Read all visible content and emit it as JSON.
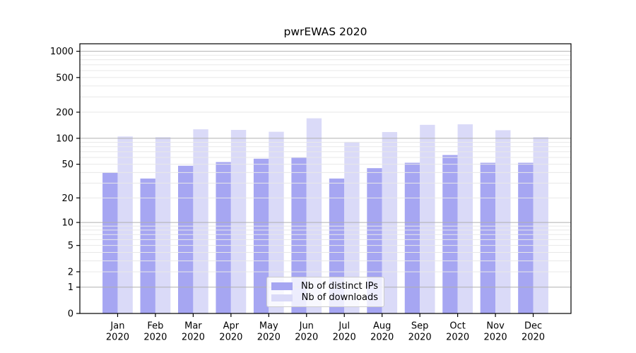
{
  "chart_data": {
    "type": "bar",
    "title": "pwrEWAS 2020",
    "categories": [
      "Jan",
      "Feb",
      "Mar",
      "Apr",
      "May",
      "Jun",
      "Jul",
      "Aug",
      "Sep",
      "Oct",
      "Nov",
      "Dec"
    ],
    "year": "2020",
    "series": [
      {
        "name": "Nb of distinct IPs",
        "color": "#a6a6f2",
        "values": [
          40,
          34,
          48,
          53,
          58,
          60,
          34,
          45,
          52,
          64,
          52,
          52
        ]
      },
      {
        "name": "Nb of downloads",
        "color": "#dadaf8",
        "values": [
          105,
          103,
          127,
          125,
          119,
          170,
          91,
          118,
          143,
          145,
          124,
          103
        ]
      }
    ],
    "y_scale": "log10(1+x)",
    "y_ticks": [
      0,
      1,
      2,
      5,
      10,
      20,
      50,
      100,
      200,
      500,
      1000
    ],
    "major_grid_values": [
      1,
      10,
      100,
      1000
    ],
    "ylim": [
      0,
      1200
    ],
    "grid": true,
    "legend_position": "lower center",
    "colors": {
      "major_grid": "#b0b0b0",
      "minor_grid": "#e8e8e8",
      "axis": "#000000",
      "tick_text": "#000000",
      "background": "#ffffff"
    }
  }
}
